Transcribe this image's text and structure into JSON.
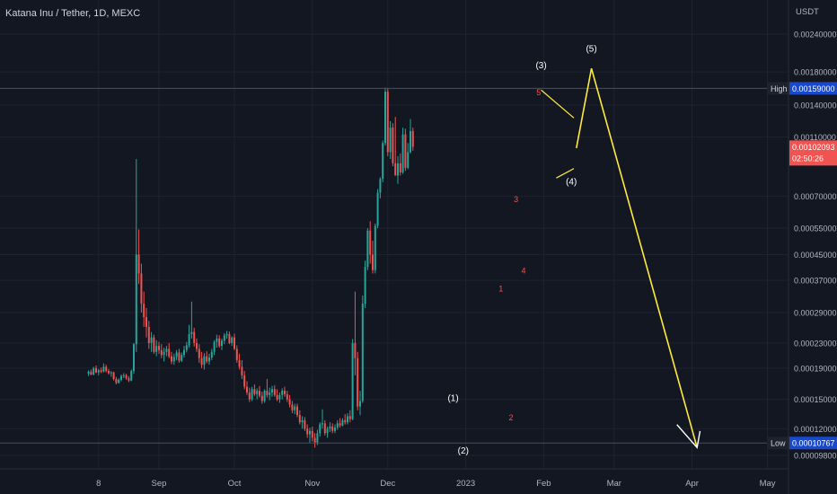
{
  "header": {
    "title": "Katana Inu / Tether, 1D, MEXC"
  },
  "chart_data": {
    "type": "candlestick",
    "quote_currency": "USDT",
    "y_scale": "log",
    "y_ticks": [
      "0.00240000",
      "0.00180000",
      "0.00140000",
      "0.00110000",
      "0.00070000",
      "0.00055000",
      "0.00045000",
      "0.00037000",
      "0.00029000",
      "0.00023000",
      "0.00019000",
      "0.00015000",
      "0.00012000",
      "0.00009800"
    ],
    "y_tick_values": [
      0.0024,
      0.0018,
      0.0014,
      0.0011,
      0.0007,
      0.00055,
      0.00045,
      0.00037,
      0.00029,
      0.00023,
      0.00019,
      0.00015,
      0.00012,
      9.8e-05
    ],
    "x_ticks": [
      "8",
      "Sep",
      "Oct",
      "Nov",
      "Dec",
      "2023",
      "Feb",
      "Mar",
      "Apr",
      "May"
    ],
    "x_tick_dates": [
      "2022-08-08",
      "2022-09-01",
      "2022-10-01",
      "2022-11-01",
      "2022-12-01",
      "2023-01-01",
      "2023-02-01",
      "2023-03-01",
      "2023-04-01",
      "2023-05-01"
    ],
    "high_label": "High",
    "high_value": "0.00159000",
    "low_label": "Low",
    "low_value": "0.00010767",
    "last_price": "0.00102093",
    "countdown": "02:50:26",
    "grid": true,
    "colors": {
      "up": "#26a69a",
      "down": "#ef5350",
      "wave": "#ffeb3b",
      "background": "#131722"
    },
    "wave_labels": [
      {
        "text": "(1)",
        "date": "2022-12-27",
        "price": 0.000148
      },
      {
        "text": "(2)",
        "date": "2022-12-31",
        "price": 9.95e-05
      },
      {
        "text": "(3)",
        "date": "2023-01-31",
        "price": 0.00185
      },
      {
        "text": "(4)",
        "date": "2023-02-12",
        "price": 0.000765
      },
      {
        "text": "(5)",
        "date": "2023-02-20",
        "price": 0.0021
      }
    ],
    "sub_wave_labels": [
      {
        "text": "1",
        "date": "2023-01-15",
        "price": 0.00034
      },
      {
        "text": "2",
        "date": "2023-01-19",
        "price": 0.000128
      },
      {
        "text": "3",
        "date": "2023-01-21",
        "price": 0.00067
      },
      {
        "text": "4",
        "date": "2023-01-24",
        "price": 0.00039
      },
      {
        "text": "5",
        "date": "2023-01-30",
        "price": 0.00151
      }
    ],
    "projection_path": [
      {
        "date": "2023-02-14",
        "price": 0.00101
      },
      {
        "date": "2023-02-20",
        "price": 0.00185
      },
      {
        "date": "2023-04-03",
        "price": 0.000104
      }
    ],
    "wedge_upper": [
      {
        "date": "2023-01-31",
        "price": 0.00157
      },
      {
        "date": "2023-02-13",
        "price": 0.00127
      }
    ],
    "wedge_lower": [
      {
        "date": "2023-02-06",
        "price": 0.000805
      },
      {
        "date": "2023-02-13",
        "price": 0.000865
      }
    ],
    "candles_ohlc": [
      [
        0.000182,
        0.000187,
        0.000179,
        0.000185
      ],
      [
        0.000185,
        0.000188,
        0.00018,
        0.000181
      ],
      [
        0.000181,
        0.000192,
        0.00018,
        0.00019
      ],
      [
        0.00019,
        0.000194,
        0.000183,
        0.000184
      ],
      [
        0.000184,
        0.000189,
        0.00018,
        0.000187
      ],
      [
        0.000187,
        0.000191,
        0.000183,
        0.000185
      ],
      [
        0.000185,
        0.000197,
        0.000184,
        0.000192
      ],
      [
        0.000192,
        0.000195,
        0.000184,
        0.000186
      ],
      [
        0.000186,
        0.000189,
        0.000181,
        0.000183
      ],
      [
        0.000183,
        0.000186,
        0.000178,
        0.000184
      ],
      [
        0.000184,
        0.000185,
        0.000173,
        0.000175
      ],
      [
        0.000175,
        0.000178,
        0.000168,
        0.00017
      ],
      [
        0.00017,
        0.000176,
        0.000169,
        0.000174
      ],
      [
        0.000174,
        0.000181,
        0.000172,
        0.000179
      ],
      [
        0.000179,
        0.000183,
        0.000176,
        0.00018
      ],
      [
        0.00018,
        0.000182,
        0.000174,
        0.000176
      ],
      [
        0.000176,
        0.000179,
        0.000171,
        0.000173
      ],
      [
        0.000173,
        0.000188,
        0.000172,
        0.000186
      ],
      [
        0.000186,
        0.00023,
        0.000182,
        0.000228
      ],
      [
        0.000228,
        0.00093,
        0.000215,
        0.00045
      ],
      [
        0.00045,
        0.000545,
        0.00036,
        0.00039
      ],
      [
        0.00039,
        0.00042,
        0.00029,
        0.00031
      ],
      [
        0.00031,
        0.00034,
        0.00026,
        0.00028
      ],
      [
        0.00028,
        0.0003,
        0.00024,
        0.00026
      ],
      [
        0.00026,
        0.000272,
        0.00022,
        0.00023
      ],
      [
        0.00023,
        0.00025,
        0.000215,
        0.00024
      ],
      [
        0.00024,
        0.000245,
        0.000212,
        0.000215
      ],
      [
        0.000215,
        0.000235,
        0.000208,
        0.000225
      ],
      [
        0.000225,
        0.000232,
        0.000212,
        0.000218
      ],
      [
        0.000218,
        0.000228,
        0.000205,
        0.00021
      ],
      [
        0.00021,
        0.000222,
        0.0002,
        0.000215
      ],
      [
        0.000215,
        0.000225,
        0.000208,
        0.00022
      ],
      [
        0.00022,
        0.00023,
        0.000205,
        0.000208
      ],
      [
        0.000208,
        0.000215,
        0.000196,
        0.0002
      ],
      [
        0.0002,
        0.000212,
        0.000195,
        0.000207
      ],
      [
        0.000207,
        0.000218,
        0.000202,
        0.000214
      ],
      [
        0.000214,
        0.00022,
        0.000198,
        0.000201
      ],
      [
        0.000201,
        0.000214,
        0.000199,
        0.00021
      ],
      [
        0.00021,
        0.000225,
        0.000206,
        0.000218
      ],
      [
        0.000218,
        0.000232,
        0.000214,
        0.000226
      ],
      [
        0.000226,
        0.000264,
        0.000222,
        0.000246
      ],
      [
        0.000246,
        0.000315,
        0.000238,
        0.00025
      ],
      [
        0.00025,
        0.000258,
        0.000224,
        0.00023
      ],
      [
        0.00023,
        0.000238,
        0.000215,
        0.00022
      ],
      [
        0.00022,
        0.000228,
        0.000198,
        0.000205
      ],
      [
        0.000205,
        0.000215,
        0.00019,
        0.000195
      ],
      [
        0.000195,
        0.000213,
        0.000188,
        0.000208
      ],
      [
        0.000208,
        0.000216,
        0.000197,
        0.0002
      ],
      [
        0.0002,
        0.000212,
        0.000195,
        0.000206
      ],
      [
        0.000206,
        0.00022,
        0.000202,
        0.000215
      ],
      [
        0.000215,
        0.000235,
        0.00021,
        0.000232
      ],
      [
        0.000232,
        0.000245,
        0.000222,
        0.000238
      ],
      [
        0.000238,
        0.000244,
        0.000222,
        0.000225
      ],
      [
        0.000225,
        0.000238,
        0.000218,
        0.000234
      ],
      [
        0.000234,
        0.000248,
        0.000228,
        0.000244
      ],
      [
        0.000244,
        0.000252,
        0.000238,
        0.000246
      ],
      [
        0.000246,
        0.000251,
        0.000228,
        0.00023
      ],
      [
        0.00023,
        0.000242,
        0.000225,
        0.00024
      ],
      [
        0.00024,
        0.000247,
        0.000218,
        0.00022
      ],
      [
        0.00022,
        0.000226,
        0.000198,
        0.000202
      ],
      [
        0.000202,
        0.000212,
        0.000188,
        0.000192
      ],
      [
        0.000192,
        0.000202,
        0.000175,
        0.00018
      ],
      [
        0.00018,
        0.000186,
        0.000162,
        0.000165
      ],
      [
        0.000165,
        0.000172,
        0.000155,
        0.000158
      ],
      [
        0.000158,
        0.000164,
        0.000147,
        0.00015
      ],
      [
        0.00015,
        0.000165,
        0.000148,
        0.000162
      ],
      [
        0.000162,
        0.000168,
        0.000154,
        0.000156
      ],
      [
        0.000156,
        0.000163,
        0.00015,
        0.00016
      ],
      [
        0.00016,
        0.000166,
        0.000152,
        0.000154
      ],
      [
        0.000154,
        0.000159,
        0.000145,
        0.000148
      ],
      [
        0.000148,
        0.000162,
        0.000146,
        0.00016
      ],
      [
        0.00016,
        0.000175,
        0.000152,
        0.000155
      ],
      [
        0.000155,
        0.000164,
        0.000149,
        0.000158
      ],
      [
        0.000158,
        0.000166,
        0.000153,
        0.000162
      ],
      [
        0.000162,
        0.000167,
        0.000153,
        0.000155
      ],
      [
        0.000155,
        0.000162,
        0.000148,
        0.00015
      ],
      [
        0.00015,
        0.000158,
        0.000146,
        0.000155
      ],
      [
        0.000155,
        0.000163,
        0.00015,
        0.00016
      ],
      [
        0.00016,
        0.000165,
        0.000153,
        0.000156
      ],
      [
        0.000156,
        0.00016,
        0.000147,
        0.00015
      ],
      [
        0.00015,
        0.000155,
        0.000141,
        0.000144
      ],
      [
        0.000144,
        0.000148,
        0.000135,
        0.000138
      ],
      [
        0.000138,
        0.000145,
        0.000134,
        0.000142
      ],
      [
        0.000142,
        0.000145,
        0.000131,
        0.000133
      ],
      [
        0.000133,
        0.000138,
        0.000124,
        0.000126
      ],
      [
        0.000126,
        0.000132,
        0.00012,
        0.000128
      ],
      [
        0.000128,
        0.000131,
        0.000118,
        0.00012
      ],
      [
        0.00012,
        0.000124,
        0.000112,
        0.000115
      ],
      [
        0.000115,
        0.000121,
        0.000108,
        0.000118
      ],
      [
        0.000118,
        0.000122,
        0.000109,
        0.000112
      ],
      [
        0.000112,
        0.000116,
        0.000104,
        0.000108
      ],
      [
        0.000108,
        0.000119,
        0.000106,
        0.000116
      ],
      [
        0.000116,
        0.000126,
        0.000113,
        0.000124
      ],
      [
        0.000124,
        0.000139,
        0.00012,
        0.000125
      ],
      [
        0.000125,
        0.000128,
        0.000114,
        0.000116
      ],
      [
        0.000116,
        0.000122,
        0.000112,
        0.00012
      ],
      [
        0.00012,
        0.000126,
        0.000117,
        0.000122
      ],
      [
        0.000122,
        0.000125,
        0.000116,
        0.000118
      ],
      [
        0.000118,
        0.000124,
        0.000116,
        0.000121
      ],
      [
        0.000121,
        0.000128,
        0.000119,
        0.000125
      ],
      [
        0.000125,
        0.00013,
        0.000121,
        0.000123
      ],
      [
        0.000123,
        0.00013,
        0.000122,
        0.000128
      ],
      [
        0.000128,
        0.000134,
        0.000124,
        0.000126
      ],
      [
        0.000126,
        0.000135,
        0.000124,
        0.000132
      ],
      [
        0.000132,
        0.000138,
        0.000126,
        0.000129
      ],
      [
        0.000129,
        0.000237,
        0.000128,
        0.00023
      ],
      [
        0.00023,
        0.00034,
        0.00018,
        0.000205
      ],
      [
        0.000205,
        0.000215,
        0.000138,
        0.000142
      ],
      [
        0.000142,
        0.00016,
        0.000133,
        0.000148
      ],
      [
        0.000148,
        0.00033,
        0.000146,
        0.00031
      ],
      [
        0.00031,
        0.00043,
        0.0003,
        0.00041
      ],
      [
        0.00041,
        0.00055,
        0.0004,
        0.00054
      ],
      [
        0.00054,
        0.00058,
        0.00042,
        0.00045
      ],
      [
        0.00045,
        0.0005,
        0.00039,
        0.0004
      ],
      [
        0.0004,
        0.00057,
        0.00039,
        0.00056
      ],
      [
        0.00056,
        0.00074,
        0.00055,
        0.00072
      ],
      [
        0.00072,
        0.00081,
        0.00069,
        0.0008
      ],
      [
        0.0008,
        0.00107,
        0.00078,
        0.00105
      ],
      [
        0.00105,
        0.0016,
        0.00103,
        0.00155
      ],
      [
        0.00155,
        0.00159,
        0.00095,
        0.00098
      ],
      [
        0.00098,
        0.00124,
        0.00093,
        0.00118
      ],
      [
        0.00118,
        0.00122,
        0.00088,
        0.0009
      ],
      [
        0.0009,
        0.00128,
        0.00087,
        0.00082
      ],
      [
        0.00082,
        0.00095,
        0.00077,
        0.0009
      ],
      [
        0.0009,
        0.00097,
        0.00082,
        0.00084
      ],
      [
        0.00084,
        0.00118,
        0.00083,
        0.00112
      ],
      [
        0.00112,
        0.00117,
        0.00085,
        0.00087
      ],
      [
        0.00087,
        0.00105,
        0.00086,
        0.00098
      ],
      [
        0.00098,
        0.00126,
        0.00097,
        0.00115
      ],
      [
        0.00115,
        0.00118,
        0.00099,
        0.00102
      ]
    ]
  }
}
